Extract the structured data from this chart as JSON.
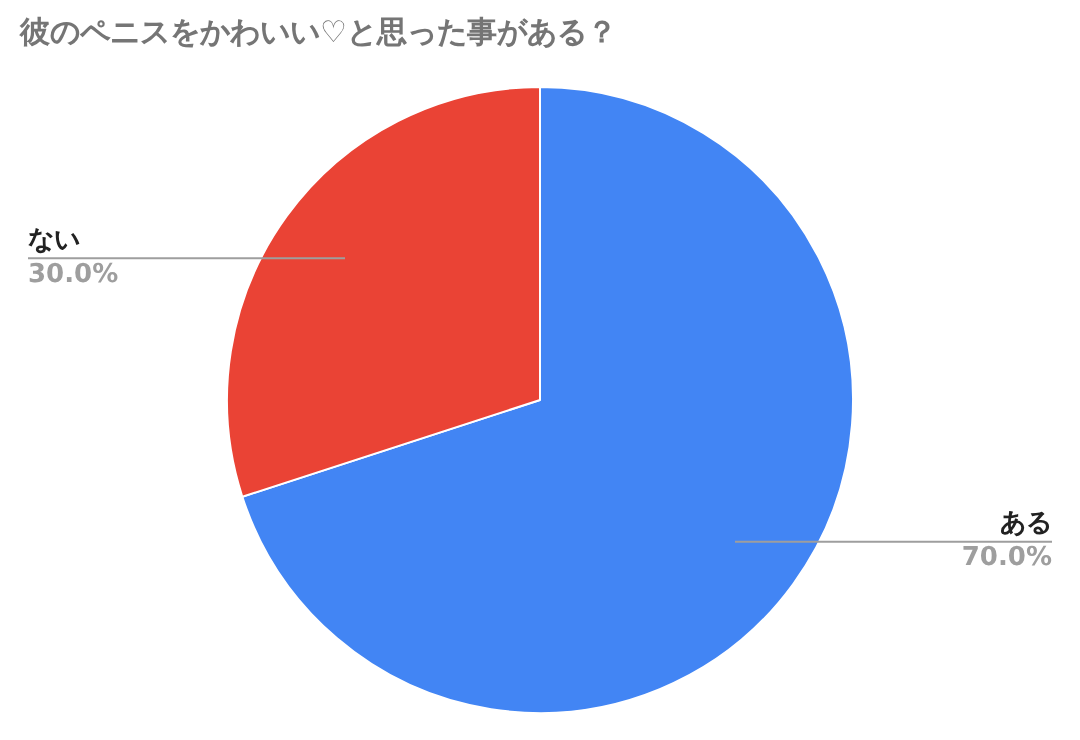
{
  "chart_data": {
    "type": "pie",
    "title": "彼のペニスをかわいい♡と思った事がある？",
    "categories": [
      "ある",
      "ない"
    ],
    "values": [
      70,
      30
    ],
    "colors": [
      "#4285f4",
      "#ea4335"
    ],
    "value_labels": [
      "70.0%",
      "30.0%"
    ],
    "legend": false
  }
}
